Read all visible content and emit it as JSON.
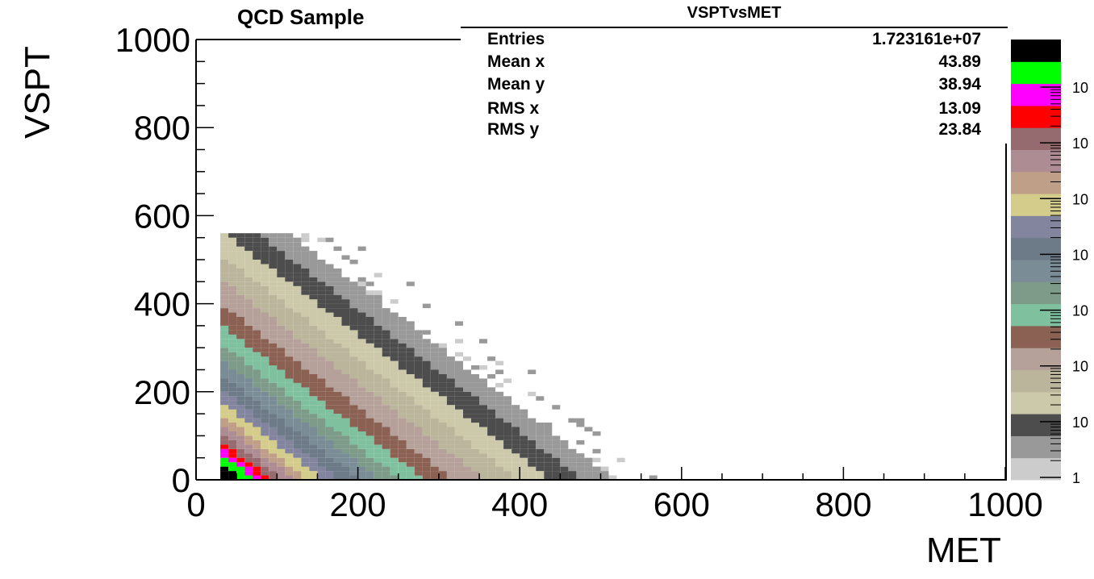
{
  "chart_data": {
    "type": "heatmap",
    "title": "QCD Sample",
    "xlabel": "MET",
    "ylabel": "VSPT",
    "xlim": [
      0,
      1000
    ],
    "ylim": [
      0,
      1000
    ],
    "x_ticks": [
      "0",
      "200",
      "400",
      "600",
      "800",
      "1000"
    ],
    "y_ticks": [
      "0",
      "200",
      "400",
      "600",
      "800",
      "1000"
    ],
    "z_scale": "log",
    "z_tick_labels": [
      "1",
      "10",
      "10",
      "10",
      "10",
      "10",
      "10",
      "10"
    ],
    "palette": [
      "#cccccc",
      "#999999",
      "#4d4d4d",
      "#ccc8aa",
      "#bbb59c",
      "#b5a19a",
      "#8a6152",
      "#7fc09e",
      "#7e9b8a",
      "#7a8c96",
      "#6d7a88",
      "#83849e",
      "#d4cc8a",
      "#bf9f87",
      "#ad8c94",
      "#966b70",
      "#ff0000",
      "#ff00ff",
      "#00ff00",
      "#000000"
    ],
    "stats": {
      "name": "VSPTvsMET",
      "rows": [
        {
          "label": "Entries",
          "value": "1.723161e+07"
        },
        {
          "label": "Mean x",
          "value": "43.89"
        },
        {
          "label": "Mean y",
          "value": "38.94"
        },
        {
          "label": "RMS x",
          "value": "13.09"
        },
        {
          "label": "RMS y",
          "value": "23.84"
        }
      ]
    },
    "band_edges": {
      "description_free": true,
      "met_at_zero": [
        0,
        60,
        80,
        100,
        130,
        180,
        230,
        280,
        330,
        380,
        420,
        470,
        520,
        580,
        640
      ],
      "vspt_at_min_met": [
        0,
        100,
        130,
        160,
        210,
        260,
        300,
        330,
        360,
        390,
        420,
        450,
        480,
        540,
        580
      ]
    }
  }
}
